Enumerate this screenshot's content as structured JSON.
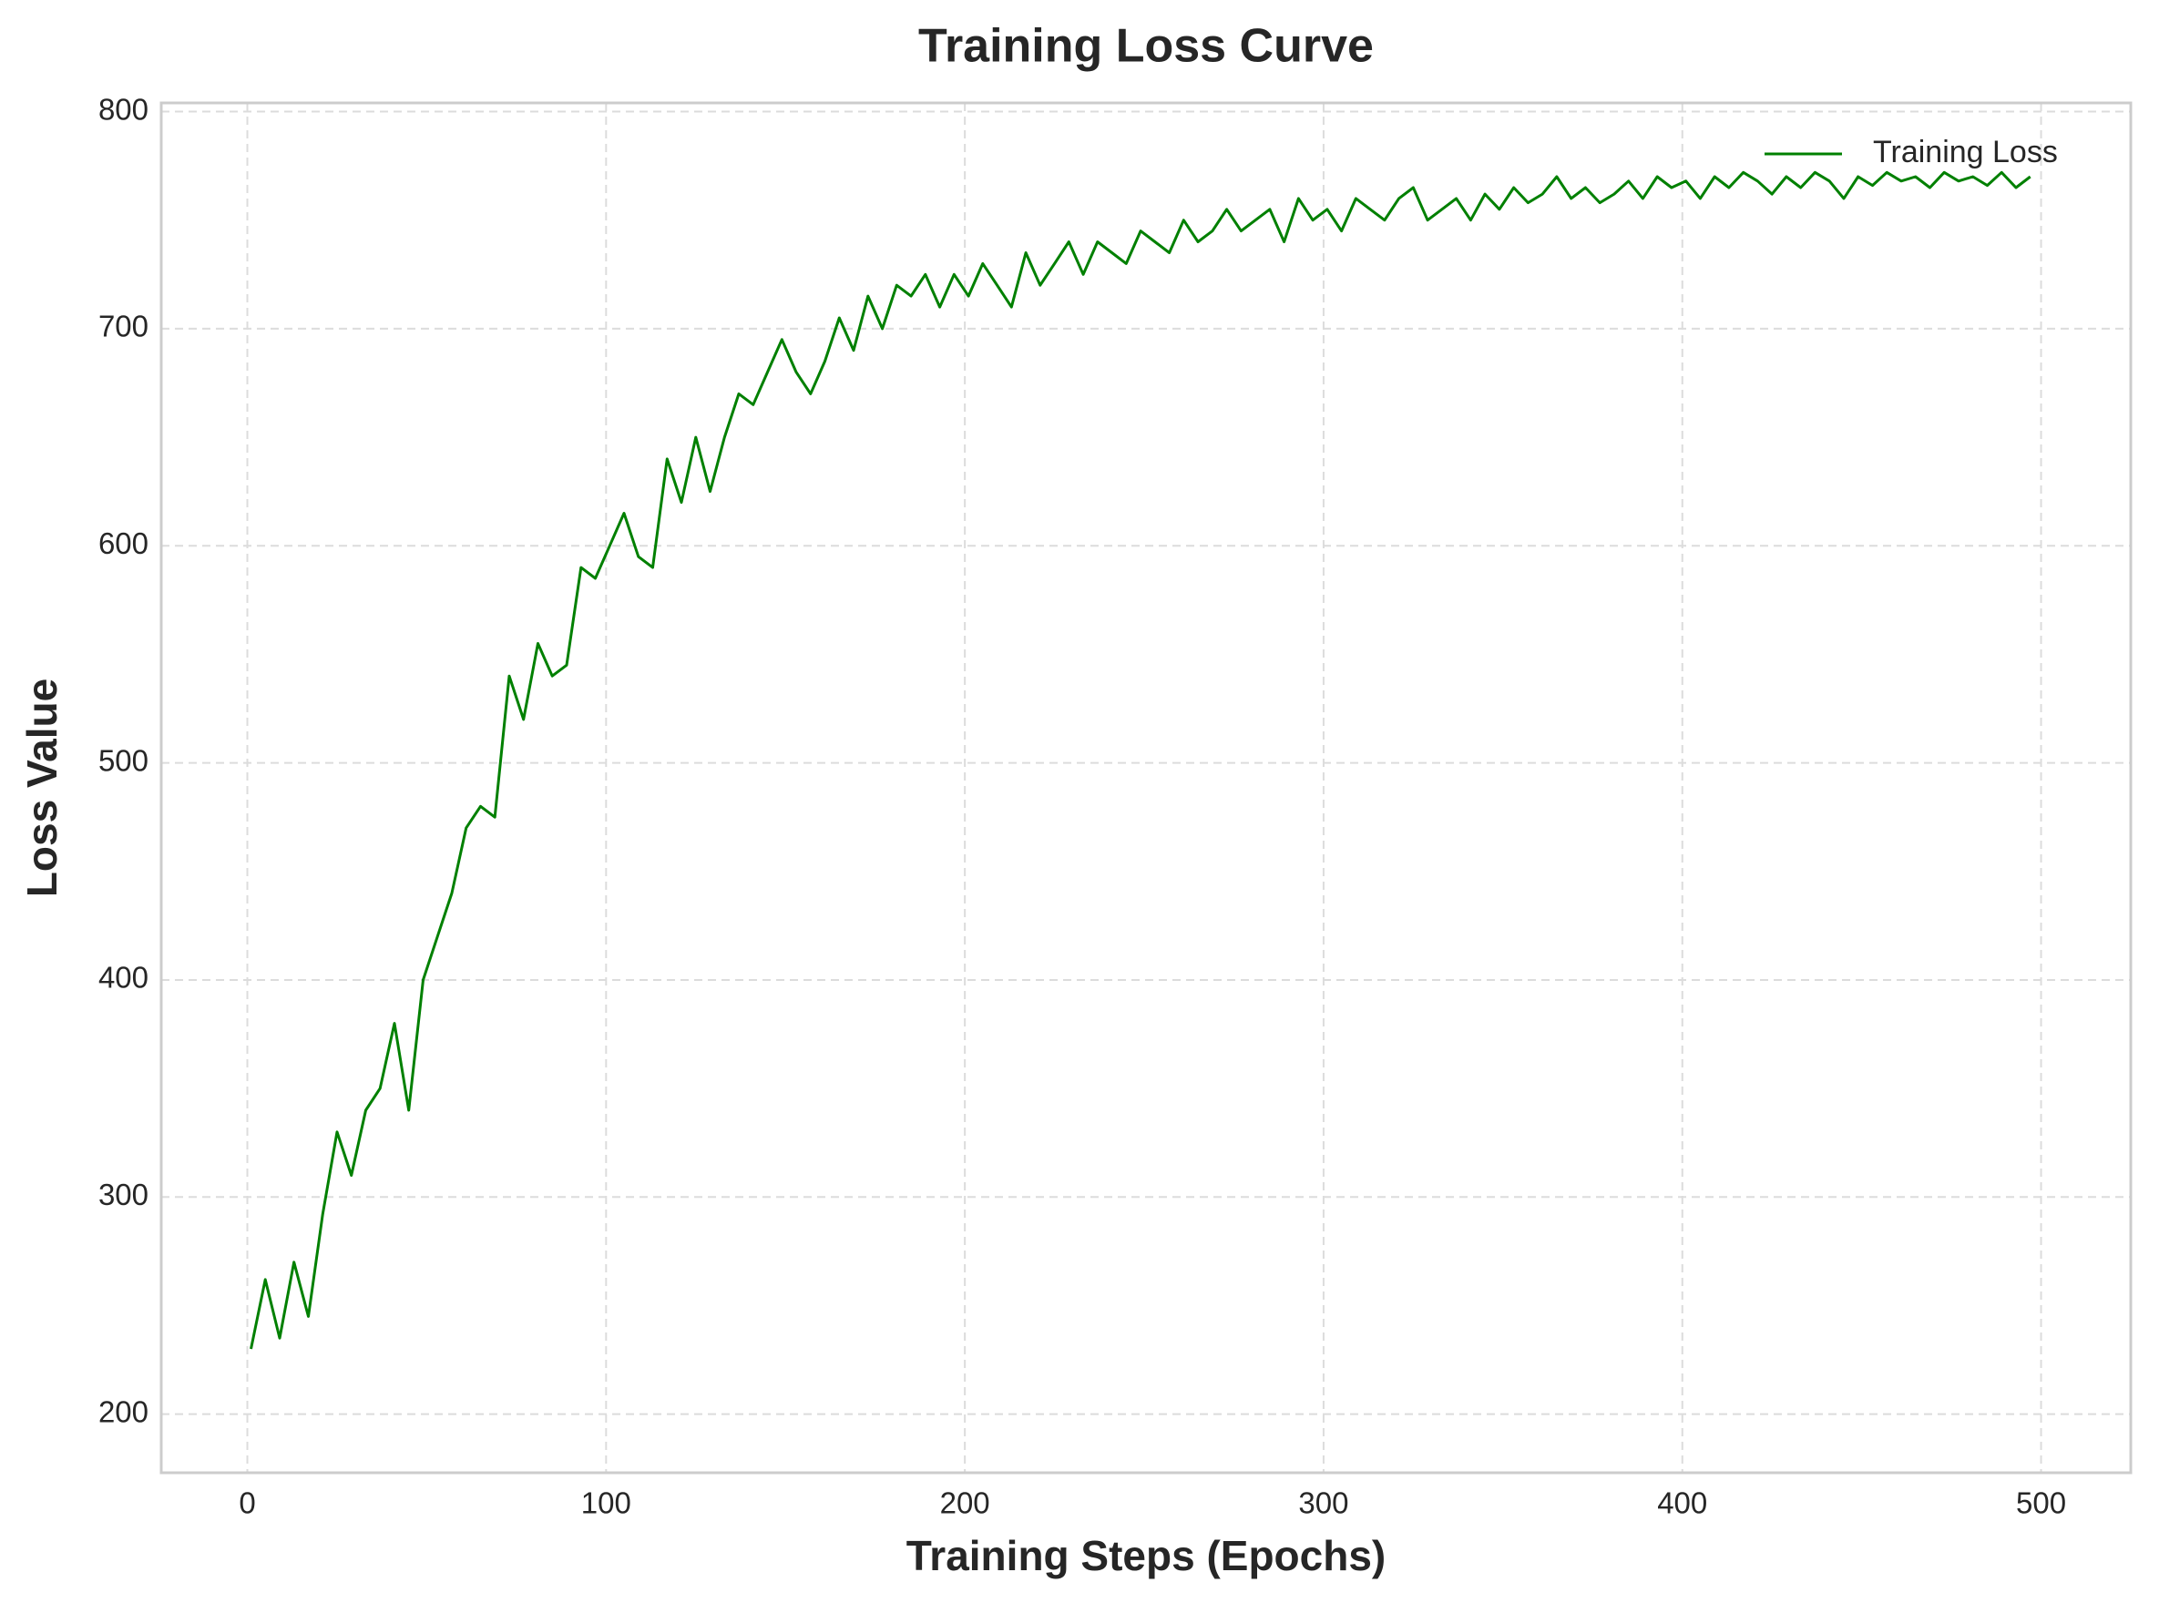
{
  "chart_data": {
    "type": "line",
    "title": "Training Loss Curve",
    "x_label": "Training Steps (Epochs)",
    "y_label": "Loss Value",
    "x": [
      1,
      5,
      9,
      13,
      17,
      21,
      25,
      29,
      33,
      37,
      41,
      45,
      49,
      53,
      57,
      61,
      65,
      69,
      73,
      77,
      81,
      85,
      89,
      93,
      97,
      101,
      105,
      109,
      113,
      117,
      121,
      125,
      129,
      133,
      137,
      141,
      145,
      149,
      153,
      157,
      161,
      165,
      169,
      173,
      177,
      181,
      185,
      189,
      193,
      197,
      201,
      205,
      209,
      213,
      217,
      221,
      225,
      229,
      233,
      237,
      241,
      245,
      249,
      253,
      257,
      261,
      265,
      269,
      273,
      277,
      281,
      285,
      289,
      293,
      297,
      301,
      305,
      309,
      313,
      317,
      321,
      325,
      329,
      333,
      337,
      341,
      345,
      349,
      353,
      357,
      361,
      365,
      369,
      373,
      377,
      381,
      385,
      389,
      393,
      397,
      401,
      405,
      409,
      413,
      417,
      421,
      425,
      429,
      433,
      437,
      441,
      445,
      449,
      453,
      457,
      461,
      465,
      469,
      473,
      477,
      481,
      485,
      489,
      493,
      497
    ],
    "series": [
      {
        "name": "Training Loss",
        "color": "#008000",
        "values": [
          230,
          262,
          235,
          270,
          245,
          292,
          330,
          310,
          340,
          350,
          380,
          340,
          400,
          420,
          440,
          470,
          480,
          475,
          540,
          520,
          555,
          540,
          545,
          590,
          585,
          600,
          615,
          595,
          590,
          640,
          620,
          650,
          625,
          650,
          670,
          665,
          680,
          695,
          680,
          670,
          685,
          705,
          690,
          715,
          700,
          720,
          715,
          725,
          710,
          725,
          715,
          730,
          720,
          710,
          735,
          720,
          730,
          740,
          725,
          740,
          735,
          730,
          745,
          740,
          735,
          750,
          740,
          745,
          755,
          745,
          750,
          755,
          740,
          760,
          750,
          755,
          745,
          760,
          755,
          750,
          760,
          765,
          750,
          755,
          760,
          750,
          762,
          755,
          765,
          758,
          762,
          770,
          760,
          765,
          758,
          762,
          768,
          760,
          770,
          765,
          768,
          760,
          770,
          765,
          772,
          768,
          762,
          770,
          765,
          772,
          768,
          760,
          770,
          766,
          772,
          768,
          770,
          765,
          772,
          768,
          770,
          766,
          772,
          765,
          770
        ]
      }
    ],
    "xlim": [
      -24,
      525
    ],
    "xticks": [
      0,
      100,
      200,
      300,
      400,
      500
    ],
    "ylim": [
      173,
      804
    ],
    "yticks": [
      200,
      300,
      400,
      500,
      600,
      700,
      800
    ],
    "grid": true,
    "legend": "upper right"
  }
}
